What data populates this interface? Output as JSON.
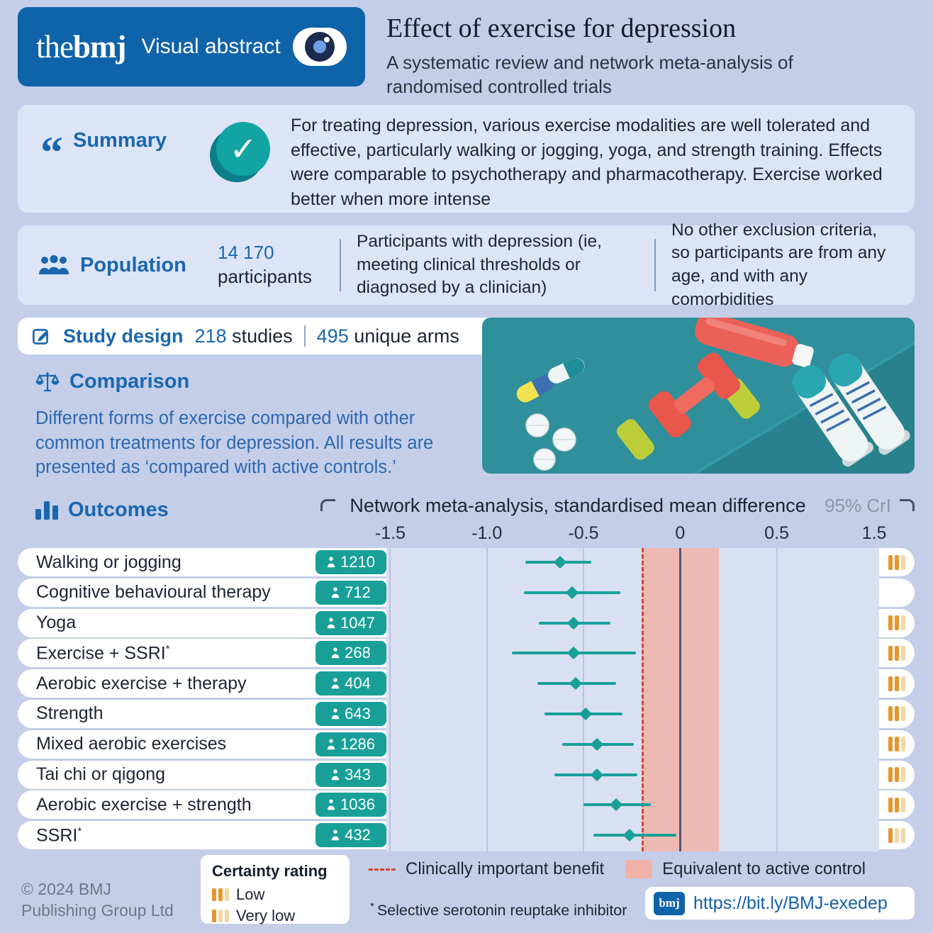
{
  "page": {
    "colors": {
      "background": "#c4cee8",
      "brand_blue": "#0f63a9",
      "heading_blue": "#1a67b0",
      "teal": "#18a098",
      "equivalence_band_pink": "#f0b2a8",
      "benefit_line_red": "#d8432f",
      "certainty_orange": "#e5962f"
    }
  },
  "header": {
    "brand_the": "the",
    "brand_bmj": "bmj",
    "brand_label": "Visual abstract",
    "title": "Effect of exercise for depression",
    "subtitle": "A systematic review and network meta-analysis of randomised controlled trials"
  },
  "summary": {
    "heading": "Summary",
    "quote_glyph": "“",
    "check_glyph": "✓",
    "text": "For treating depression, various exercise modalities are well tolerated and effective, particularly walking or jogging, yoga, and strength training. Effects were comparable to psychotherapy and pharmacotherapy. Exercise worked better when more intense"
  },
  "population": {
    "heading": "Population",
    "count": "14 170",
    "count_label": "participants",
    "criteria": "Participants with depression (ie, meeting clinical thresholds or diagnosed by a clinician)",
    "exclusion": "No other exclusion criteria, so participants are from any age, and with any comorbidities"
  },
  "study_design": {
    "heading": "Study design",
    "studies_value": "218",
    "studies_label": "studies",
    "arms_value": "495",
    "arms_label": "unique arms"
  },
  "comparison": {
    "heading": "Comparison",
    "text": "Different forms of exercise compared with other common treatments for depression. All results are presented as ‘compared with active controls.’"
  },
  "outcomes": {
    "heading": "Outcomes"
  },
  "icons": {
    "brand": "eye-icon",
    "summary": "quote-icon",
    "summary_check": "check-circle-icon",
    "population": "people-icon",
    "study_design": "pencil-icon",
    "comparison": "scales-icon",
    "outcomes": "bar-chart-icon",
    "participants_badge": "person-icon",
    "illustration": "exercise-equipment-illustration"
  },
  "chart_data": {
    "type": "scatter",
    "variant": "forest-plot",
    "title": "Network meta-analysis, standardised mean difference",
    "interval_label": "95% CrI",
    "x_ticks": [
      "-1.5",
      "-1.0",
      "-0.5",
      "0",
      "0.5",
      "1.5"
    ],
    "x_tick_values": [
      -1.5,
      -1.0,
      -0.5,
      0,
      0.5,
      1.5
    ],
    "xlim": [
      -1.52,
      1.03
    ],
    "zero_line": 0,
    "clinical_benefit_threshold": -0.2,
    "equivalence_band": [
      -0.2,
      0.2
    ],
    "grid": true,
    "rows": [
      {
        "label": "Walking or jogging",
        "asterisk": false,
        "participants": 1210,
        "smd": -0.62,
        "ci": [
          -0.8,
          -0.46
        ],
        "certainty": "low"
      },
      {
        "label": "Cognitive behavioural therapy",
        "asterisk": false,
        "participants": 712,
        "smd": -0.56,
        "ci": [
          -0.81,
          -0.31
        ],
        "certainty": null
      },
      {
        "label": "Yoga",
        "asterisk": false,
        "participants": 1047,
        "smd": -0.55,
        "ci": [
          -0.73,
          -0.36
        ],
        "certainty": "low"
      },
      {
        "label": "Exercise + SSRI",
        "asterisk": true,
        "participants": 268,
        "smd": -0.55,
        "ci": [
          -0.87,
          -0.23
        ],
        "certainty": "low"
      },
      {
        "label": "Aerobic exercise + therapy",
        "asterisk": false,
        "participants": 404,
        "smd": -0.54,
        "ci": [
          -0.74,
          -0.33
        ],
        "certainty": "low"
      },
      {
        "label": "Strength",
        "asterisk": false,
        "participants": 643,
        "smd": -0.49,
        "ci": [
          -0.7,
          -0.3
        ],
        "certainty": "low"
      },
      {
        "label": "Mixed aerobic exercises",
        "asterisk": false,
        "participants": 1286,
        "smd": -0.43,
        "ci": [
          -0.61,
          -0.24
        ],
        "certainty": "low"
      },
      {
        "label": "Tai chi or qigong",
        "asterisk": false,
        "participants": 343,
        "smd": -0.43,
        "ci": [
          -0.65,
          -0.22
        ],
        "certainty": "low"
      },
      {
        "label": "Aerobic exercise + strength",
        "asterisk": false,
        "participants": 1036,
        "smd": -0.33,
        "ci": [
          -0.5,
          -0.15
        ],
        "certainty": "low"
      },
      {
        "label": "SSRI",
        "asterisk": true,
        "participants": 432,
        "smd": -0.26,
        "ci": [
          -0.45,
          -0.02
        ],
        "certainty": "very-low"
      }
    ]
  },
  "legend": {
    "certainty_title": "Certainty rating",
    "low_label": "Low",
    "very_low_label": "Very low",
    "dashed_label": "Clinically important benefit",
    "band_label": "Equivalent to active control",
    "footnote_mark": "*",
    "footnote_text": "Selective serotonin reuptake inhibitor"
  },
  "footer": {
    "copyright_line1": "© 2024 BMJ",
    "copyright_line2": "Publishing Group Ltd",
    "link_logo": "bmj",
    "link_text": "https://bit.ly/BMJ-exedep"
  }
}
